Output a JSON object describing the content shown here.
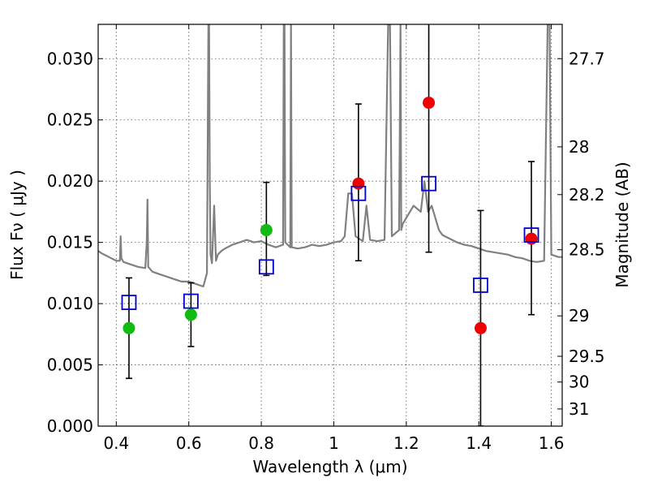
{
  "chart_data": {
    "type": "scatter",
    "xlabel": "Wavelength  λ (μm)",
    "ylabel": "Flux  Fν  ( μJy )",
    "ylabel_right": "Magnitude (AB)",
    "xlim": [
      0.35,
      1.63
    ],
    "ylim": [
      0.0,
      0.0328
    ],
    "grid": true,
    "x_ticks": [
      0.4,
      0.6,
      0.8,
      1.0,
      1.2,
      1.4,
      1.6
    ],
    "x_tick_labels": [
      "0.4",
      "0.6",
      "0.8",
      "1",
      "1.2",
      "1.4",
      "1.6"
    ],
    "y_ticks": [
      0.0,
      0.005,
      0.01,
      0.015,
      0.02,
      0.025,
      0.03
    ],
    "y_tick_labels": [
      "0.000",
      "0.005",
      "0.010",
      "0.015",
      "0.020",
      "0.025",
      "0.030"
    ],
    "right_ticks": [
      {
        "label": "27.7",
        "flux": 0.03
      },
      {
        "label": "28",
        "flux": 0.0228
      },
      {
        "label": "28.2",
        "flux": 0.0189
      },
      {
        "label": "28.5",
        "flux": 0.0144
      },
      {
        "label": "29",
        "flux": 0.009
      },
      {
        "label": "29.5",
        "flux": 0.0057
      },
      {
        "label": "30",
        "flux": 0.0036
      },
      {
        "label": "31",
        "flux": 0.0014
      }
    ],
    "series": [
      {
        "marker": "circle",
        "color": "#11bb11",
        "points": [
          {
            "x": 0.435,
            "y": 0.008,
            "yerr_low": 0.0041,
            "yerr_high": 0.0041
          },
          {
            "x": 0.606,
            "y": 0.0091,
            "yerr_low": 0.0026,
            "yerr_high": 0.0026
          },
          {
            "x": 0.814,
            "y": 0.016,
            "yerr_low": 0.0037,
            "yerr_high": 0.0039
          }
        ]
      },
      {
        "marker": "circle",
        "color": "#ee0000",
        "points": [
          {
            "x": 1.068,
            "y": 0.0198,
            "yerr_low": 0.0063,
            "yerr_high": 0.0065
          },
          {
            "x": 1.262,
            "y": 0.0264,
            "yerr_low": 0.0122,
            "yerr_high": 0.01
          },
          {
            "x": 1.405,
            "y": 0.008,
            "yerr_low": 0.008,
            "yerr_high": 0.0096
          },
          {
            "x": 1.545,
            "y": 0.0153,
            "yerr_low": 0.0062,
            "yerr_high": 0.0063
          }
        ]
      },
      {
        "marker": "open-square",
        "color": "#0000cc",
        "points": [
          {
            "x": 0.435,
            "y": 0.0101
          },
          {
            "x": 0.606,
            "y": 0.0102
          },
          {
            "x": 0.814,
            "y": 0.013
          },
          {
            "x": 1.068,
            "y": 0.019
          },
          {
            "x": 1.262,
            "y": 0.0198
          },
          {
            "x": 1.405,
            "y": 0.0115
          },
          {
            "x": 1.545,
            "y": 0.0156
          }
        ]
      },
      {
        "marker": "line",
        "color": "#808080",
        "x": [
          0.35,
          0.36,
          0.38,
          0.4,
          0.41,
          0.412,
          0.414,
          0.42,
          0.44,
          0.46,
          0.48,
          0.484,
          0.486,
          0.488,
          0.5,
          0.52,
          0.54,
          0.56,
          0.58,
          0.6,
          0.62,
          0.64,
          0.65,
          0.654,
          0.656,
          0.658,
          0.66,
          0.664,
          0.67,
          0.675,
          0.68,
          0.69,
          0.7,
          0.72,
          0.74,
          0.76,
          0.78,
          0.8,
          0.82,
          0.84,
          0.86,
          0.862,
          0.864,
          0.866,
          0.88,
          0.882,
          0.884,
          0.9,
          0.92,
          0.94,
          0.96,
          0.98,
          1.0,
          1.02,
          1.03,
          1.04,
          1.05,
          1.06,
          1.08,
          1.09,
          1.1,
          1.12,
          1.14,
          1.15,
          1.155,
          1.16,
          1.18,
          1.182,
          1.184,
          1.186,
          1.19,
          1.2,
          1.22,
          1.24,
          1.25,
          1.26,
          1.27,
          1.28,
          1.29,
          1.3,
          1.32,
          1.34,
          1.36,
          1.38,
          1.4,
          1.42,
          1.44,
          1.46,
          1.48,
          1.5,
          1.52,
          1.54,
          1.56,
          1.58,
          1.59,
          1.595,
          1.6,
          1.61,
          1.62,
          1.63
        ],
        "y": [
          0.0143,
          0.0141,
          0.0138,
          0.0135,
          0.0135,
          0.0155,
          0.0137,
          0.0134,
          0.0132,
          0.013,
          0.0129,
          0.015,
          0.0185,
          0.013,
          0.0126,
          0.0124,
          0.0122,
          0.012,
          0.0118,
          0.0118,
          0.0116,
          0.0114,
          0.0125,
          0.033,
          0.033,
          0.02,
          0.014,
          0.0133,
          0.018,
          0.0135,
          0.014,
          0.0143,
          0.0145,
          0.0148,
          0.015,
          0.0152,
          0.015,
          0.0151,
          0.0148,
          0.0146,
          0.0148,
          0.033,
          0.033,
          0.015,
          0.0146,
          0.033,
          0.0146,
          0.0145,
          0.0146,
          0.0148,
          0.0147,
          0.0148,
          0.015,
          0.0151,
          0.0155,
          0.019,
          0.019,
          0.0155,
          0.0151,
          0.018,
          0.0152,
          0.0151,
          0.0152,
          0.033,
          0.033,
          0.0155,
          0.016,
          0.024,
          0.033,
          0.016,
          0.0165,
          0.017,
          0.018,
          0.0175,
          0.02,
          0.0175,
          0.018,
          0.017,
          0.016,
          0.0156,
          0.0153,
          0.015,
          0.0148,
          0.0147,
          0.0145,
          0.0143,
          0.0142,
          0.0141,
          0.014,
          0.0138,
          0.0137,
          0.0135,
          0.0134,
          0.0135,
          0.033,
          0.033,
          0.014,
          0.0139,
          0.0138,
          0.0138
        ]
      }
    ]
  }
}
